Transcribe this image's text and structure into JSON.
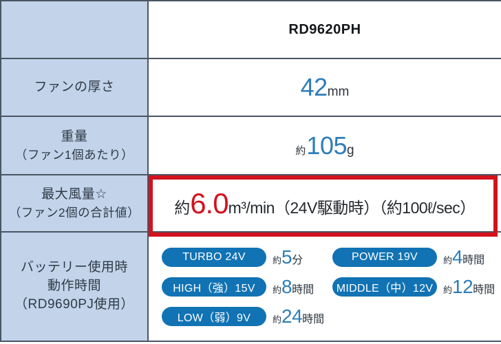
{
  "header": {
    "model": "RD9620PH"
  },
  "rows": {
    "thickness": {
      "label": "ファンの厚さ",
      "num": "42",
      "unit": "mm"
    },
    "weight": {
      "label_line1": "重量",
      "label_line2": "（ファン1個あたり）",
      "approx": "約",
      "num": "105",
      "unit": "g"
    },
    "airflow": {
      "label_line1": "最大風量☆",
      "label_line2": "（ファン2個の合計値）",
      "approx": "約",
      "num": "6.0",
      "detail": "m³/min（24V駆動時）（約100ℓ/sec）"
    },
    "battery": {
      "label_line1": "バッテリー使用時",
      "label_line2": "動作時間",
      "label_line3": "（RD9690PJ使用）",
      "modes": [
        {
          "badge": "TURBO 24V",
          "approx": "約",
          "num": "5",
          "unit": "分"
        },
        {
          "badge": "POWER 19V",
          "approx": "約",
          "num": "4",
          "unit": "時間"
        },
        {
          "badge": "HIGH（強）15V",
          "approx": "約",
          "num": "8",
          "unit": "時間"
        },
        {
          "badge": "MIDDLE（中）12V",
          "approx": "約",
          "num": "12",
          "unit": "時間"
        },
        {
          "badge": "LOW（弱）9V",
          "approx": "約",
          "num": "24",
          "unit": "時間"
        }
      ]
    }
  },
  "colors": {
    "accent_number_blue": "#2e7db9",
    "badge_blue": "#1173b4",
    "highlight_red": "#d3121e",
    "label_cell_bg": "#c2d3ea",
    "grid_line": "#4a5563"
  }
}
